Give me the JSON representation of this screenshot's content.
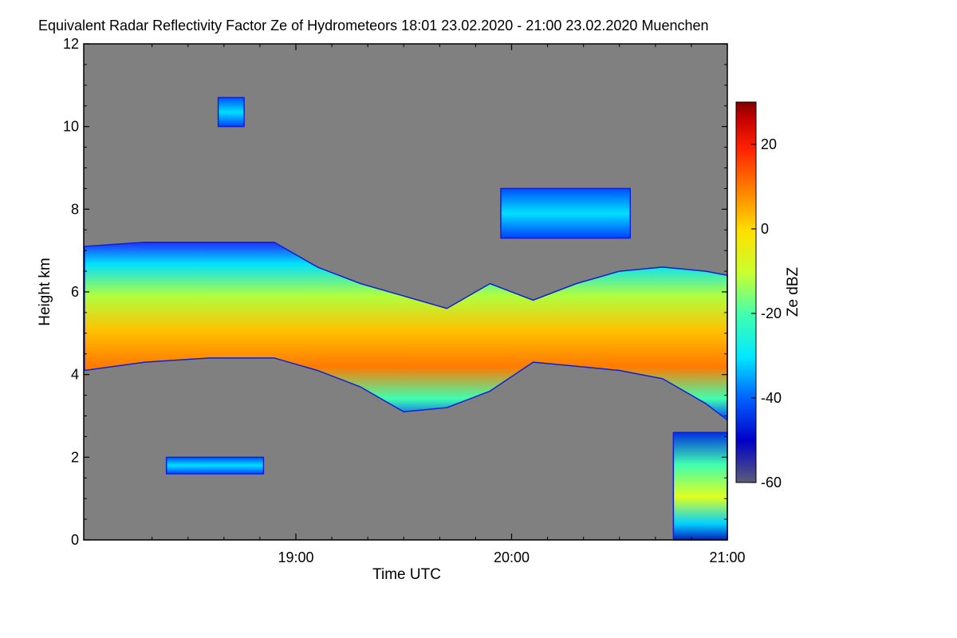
{
  "chart_data": {
    "type": "heatmap",
    "title": "Equivalent Radar Reflectivity Factor Ze of Hydrometeors   18:01 23.02.2020 - 21:00 23.02.2020 Muenchen",
    "xlabel": "Time UTC",
    "ylabel": "Height km",
    "colorbar_label": "Ze dBZ",
    "x_range": [
      "18:01",
      "21:00"
    ],
    "x_ticks": [
      "19:00",
      "20:00",
      "21:00"
    ],
    "x_tick_hours": [
      19,
      20,
      21
    ],
    "ylim": [
      0,
      12
    ],
    "y_ticks": [
      0,
      2,
      4,
      6,
      8,
      10,
      12
    ],
    "z_range": [
      -60,
      30
    ],
    "colorbar_ticks": [
      20,
      0,
      -20,
      -40,
      -60
    ],
    "background_color": "#808080",
    "colormap": [
      "#5c5c78",
      "#0000c8",
      "#0060ff",
      "#00e8ff",
      "#40ffb0",
      "#c8ff30",
      "#ffe000",
      "#ff8000",
      "#ff2000",
      "#c00000",
      "#800000"
    ],
    "regions": [
      {
        "name": "main-cloud-layer",
        "x": [
          18.02,
          18.3,
          18.6,
          18.9,
          19.1,
          19.3,
          19.5,
          19.7,
          19.9,
          20.1,
          20.3,
          20.5,
          20.7,
          20.9,
          21.0
        ],
        "top": [
          7.1,
          7.2,
          7.2,
          7.2,
          6.6,
          6.2,
          5.9,
          5.6,
          6.2,
          5.8,
          6.2,
          6.5,
          6.6,
          6.5,
          6.4
        ],
        "base": [
          4.1,
          4.3,
          4.4,
          4.4,
          4.1,
          3.7,
          3.1,
          3.2,
          3.6,
          4.3,
          4.2,
          4.1,
          3.9,
          3.3,
          2.9
        ],
        "peak_dbz": 15
      },
      {
        "name": "cirrus-patch-10km",
        "x": [
          18.64,
          18.76
        ],
        "top": [
          10.7,
          10.7
        ],
        "base": [
          10.0,
          10.0
        ],
        "peak_dbz": -25
      },
      {
        "name": "upper-layer-8km",
        "x": [
          19.95,
          20.55
        ],
        "top": [
          8.5,
          8.5
        ],
        "base": [
          7.3,
          7.3
        ],
        "peak_dbz": -25
      },
      {
        "name": "boundary-layer-2km",
        "x": [
          18.4,
          18.85
        ],
        "top": [
          2.0,
          2.0
        ],
        "base": [
          1.6,
          1.6
        ],
        "peak_dbz": -30
      },
      {
        "name": "precipitation-shaft",
        "x": [
          20.75,
          21.0
        ],
        "top": [
          2.6,
          2.6
        ],
        "base": [
          0.0,
          0.0
        ],
        "peak_dbz": 5
      }
    ]
  }
}
